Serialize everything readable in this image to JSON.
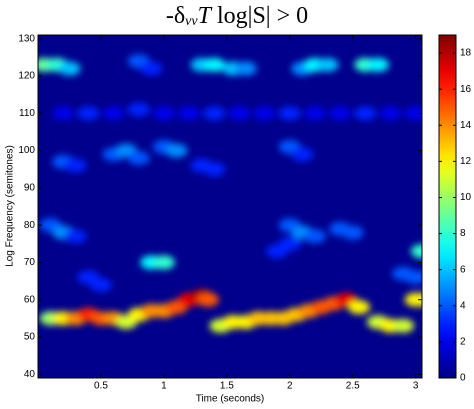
{
  "chart_data": {
    "type": "heatmap",
    "title": [
      "-δ",
      "vv",
      "T",
      " log|S| > 0"
    ],
    "x_label": "Time (seconds)",
    "y_label": "Log Frequency (semitones)",
    "xlim": [
      0,
      3.05
    ],
    "xticks": [
      0.5,
      1,
      1.5,
      2,
      2.5,
      3
    ],
    "ylim": [
      39,
      131
    ],
    "yticks": [
      40,
      50,
      60,
      70,
      80,
      90,
      100,
      110,
      120,
      130
    ],
    "clim": [
      0,
      19
    ],
    "cticks": [
      0,
      2,
      4,
      6,
      8,
      10,
      12,
      14,
      16,
      18
    ],
    "colormap": "jet",
    "series": [
      {
        "x": [
          0.2,
          0.4,
          0.6,
          0.8,
          1.0,
          1.2,
          1.4,
          1.6,
          1.8,
          2.0,
          2.2,
          2.4,
          2.6,
          2.8,
          3.0
        ],
        "values": [
          110,
          110,
          110,
          111,
          110,
          110,
          110,
          110,
          110,
          110,
          110,
          110,
          110,
          110,
          110
        ],
        "intensity": [
          2,
          3,
          2,
          3,
          2,
          2,
          3,
          2,
          2,
          3,
          2,
          2,
          3,
          2,
          2
        ]
      },
      {
        "x": [
          0.05,
          0.15,
          0.25
        ],
        "values": [
          123,
          123,
          122
        ],
        "intensity": [
          9,
          8,
          6
        ]
      },
      {
        "x": [
          0.8,
          0.9
        ],
        "values": [
          124,
          122
        ],
        "intensity": [
          4,
          3
        ]
      },
      {
        "x": [
          1.3,
          1.4,
          1.55,
          1.65
        ],
        "values": [
          123,
          123,
          122,
          122
        ],
        "intensity": [
          6,
          7,
          6,
          5
        ]
      },
      {
        "x": [
          2.1,
          2.2,
          2.3
        ],
        "values": [
          122,
          123,
          123
        ],
        "intensity": [
          5,
          7,
          6
        ]
      },
      {
        "x": [
          2.6,
          2.7
        ],
        "values": [
          123,
          123
        ],
        "intensity": [
          8,
          7
        ]
      },
      {
        "x": [
          0.2,
          0.3
        ],
        "values": [
          97,
          96
        ],
        "intensity": [
          4,
          3
        ]
      },
      {
        "x": [
          0.6,
          0.7,
          0.8
        ],
        "values": [
          99,
          100,
          98
        ],
        "intensity": [
          4,
          5,
          4
        ]
      },
      {
        "x": [
          1.0,
          1.1
        ],
        "values": [
          101,
          100
        ],
        "intensity": [
          4,
          5
        ]
      },
      {
        "x": [
          1.3,
          1.4
        ],
        "values": [
          96,
          95
        ],
        "intensity": [
          3,
          3
        ]
      },
      {
        "x": [
          2.0,
          2.1
        ],
        "values": [
          101,
          99
        ],
        "intensity": [
          4,
          3
        ]
      },
      {
        "x": [
          0.1,
          0.2,
          0.3
        ],
        "values": [
          80,
          78,
          77
        ],
        "intensity": [
          4,
          5,
          3
        ]
      },
      {
        "x": [
          0.9,
          1.0
        ],
        "values": [
          70,
          70
        ],
        "intensity": [
          7,
          8
        ]
      },
      {
        "x": [
          2.0,
          2.1,
          2.2
        ],
        "values": [
          80,
          78,
          77
        ],
        "intensity": [
          4,
          5,
          4
        ]
      },
      {
        "x": [
          2.4,
          2.5
        ],
        "values": [
          79,
          78
        ],
        "intensity": [
          4,
          4
        ]
      },
      {
        "x": [
          3.05
        ],
        "values": [
          73
        ],
        "intensity": [
          8
        ]
      },
      {
        "x": [
          0.4,
          0.5
        ],
        "values": [
          66,
          64
        ],
        "intensity": [
          3,
          3
        ]
      },
      {
        "x": [
          2.9,
          3.0
        ],
        "values": [
          67,
          66
        ],
        "intensity": [
          4,
          4
        ]
      },
      {
        "x": [
          1.9,
          2.0
        ],
        "values": [
          73,
          75
        ],
        "intensity": [
          3,
          3
        ]
      },
      {
        "x": [
          0.1,
          0.2,
          0.3,
          0.4,
          0.5,
          0.6,
          0.7
        ],
        "values": [
          55,
          55,
          55,
          56,
          55,
          55,
          54
        ],
        "intensity": [
          10,
          12,
          14,
          16,
          15,
          14,
          11
        ]
      },
      {
        "x": [
          0.8,
          0.9,
          1.0,
          1.1,
          1.2,
          1.3,
          1.35
        ],
        "values": [
          56,
          57,
          57,
          58,
          60,
          61,
          60
        ],
        "intensity": [
          12,
          14,
          14,
          15,
          17,
          18,
          15
        ]
      },
      {
        "x": [
          1.45,
          1.55,
          1.65,
          1.75,
          1.85,
          1.95,
          2.05,
          2.15,
          2.25,
          2.35,
          2.45,
          2.55
        ],
        "values": [
          53,
          54,
          54,
          55,
          55,
          55,
          56,
          57,
          58,
          59,
          60,
          58
        ],
        "intensity": [
          11,
          12,
          12,
          13,
          13,
          13,
          13,
          14,
          15,
          15,
          17,
          12
        ]
      },
      {
        "x": [
          2.7,
          2.8,
          2.9
        ],
        "values": [
          54,
          53,
          53
        ],
        "intensity": [
          11,
          12,
          11
        ]
      },
      {
        "x": [
          3.0,
          3.08
        ],
        "values": [
          60,
          60
        ],
        "intensity": [
          12,
          12
        ]
      }
    ]
  }
}
